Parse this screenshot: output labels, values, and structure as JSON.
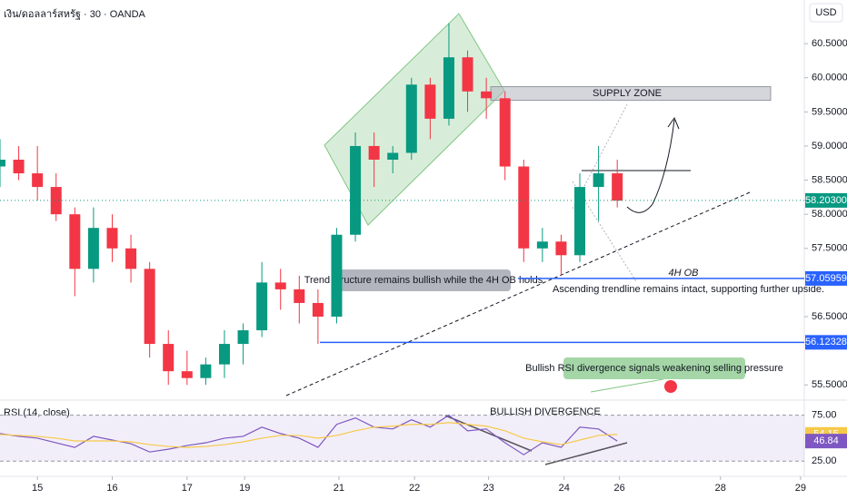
{
  "header": {
    "symbol": "เงิน/ดอลลาร์สหรัฐ · 30 · OANDA",
    "currency": "USD"
  },
  "chart_data": [
    {
      "type": "candlestick",
      "x": [
        -0.5,
        -0.25,
        0,
        0.25,
        0.5,
        0.75,
        1,
        1.25,
        1.5,
        1.75,
        2,
        2.25,
        2.5,
        2.75,
        3,
        3.25,
        3.5,
        3.75,
        4,
        4.25,
        4.5,
        4.75,
        5,
        5.25,
        5.5,
        5.75,
        6,
        6.25,
        6.5,
        6.75,
        7,
        7.25,
        7.5,
        7.75
      ],
      "open": [
        58.7,
        58.8,
        58.6,
        58.4,
        58.0,
        57.2,
        57.8,
        57.5,
        57.2,
        56.1,
        55.7,
        55.6,
        55.8,
        56.1,
        56.3,
        57.0,
        56.9,
        56.7,
        56.5,
        57.7,
        59.0,
        58.8,
        58.9,
        59.9,
        59.4,
        60.3,
        59.8,
        59.7,
        58.7,
        57.5,
        57.6,
        57.4,
        58.4,
        58.6
      ],
      "high": [
        59.1,
        59.0,
        59.0,
        58.6,
        58.1,
        58.1,
        58.0,
        57.7,
        57.3,
        56.3,
        56.0,
        55.9,
        56.3,
        56.4,
        57.3,
        57.2,
        57.1,
        56.9,
        57.8,
        59.2,
        59.2,
        59.0,
        60.0,
        60.0,
        60.8,
        60.4,
        60.0,
        59.8,
        58.8,
        57.8,
        57.7,
        58.6,
        59.0,
        58.8
      ],
      "low": [
        58.4,
        58.5,
        58.2,
        57.9,
        56.8,
        57.0,
        57.3,
        57.0,
        55.9,
        55.5,
        55.5,
        55.5,
        55.6,
        55.8,
        56.2,
        56.6,
        56.4,
        56.1,
        56.4,
        57.6,
        58.4,
        58.6,
        58.8,
        59.1,
        59.3,
        59.5,
        59.4,
        58.5,
        57.3,
        57.3,
        57.1,
        57.3,
        57.9,
        58.1
      ],
      "close": [
        58.8,
        58.6,
        58.4,
        58.0,
        57.2,
        57.8,
        57.5,
        57.2,
        56.1,
        55.7,
        55.6,
        55.8,
        56.1,
        56.3,
        57.0,
        56.9,
        56.7,
        56.5,
        57.7,
        59.0,
        58.8,
        58.9,
        59.9,
        59.4,
        60.3,
        59.8,
        59.7,
        58.7,
        57.5,
        57.6,
        57.4,
        58.4,
        58.6,
        58.2
      ],
      "up_color": "#089981",
      "down_color": "#f23645",
      "xlim": [
        -0.5,
        10.25
      ],
      "xticks": [
        {
          "value": 0,
          "label": "15"
        },
        {
          "value": 1,
          "label": "16"
        },
        {
          "value": 2,
          "label": "17"
        },
        {
          "value": 2.77,
          "label": "19"
        },
        {
          "value": 4.03,
          "label": "21"
        },
        {
          "value": 5.04,
          "label": "22"
        },
        {
          "value": 6.03,
          "label": "23"
        },
        {
          "value": 7.04,
          "label": "24"
        },
        {
          "value": 7.78,
          "label": "26"
        },
        {
          "value": 9.13,
          "label": "28"
        },
        {
          "value": 10.2,
          "label": "29"
        }
      ],
      "ylim": [
        55.29,
        61.14
      ],
      "yticks": [
        {
          "value": 60.5,
          "label": "60.50000"
        },
        {
          "value": 60,
          "label": "60.00000"
        },
        {
          "value": 59.5,
          "label": "59.50000"
        },
        {
          "value": 59,
          "label": "59.00000"
        },
        {
          "value": 58.5,
          "label": "58.50000"
        },
        {
          "value": 58,
          "label": "58.00000"
        },
        {
          "value": 57.5,
          "label": "57.50000"
        },
        {
          "value": 56.5,
          "label": "56.50000"
        },
        {
          "value": 55.5,
          "label": "55.50000"
        }
      ],
      "price_badges": [
        {
          "value": 58.203,
          "label": "58.20300",
          "color": "#089981"
        },
        {
          "value": 57.05959,
          "label": "57.05959",
          "color": "#2962ff"
        },
        {
          "value": 56.12328,
          "label": "56.12328",
          "color": "#2962ff"
        }
      ],
      "supply_zone": {
        "label": "SUPPLY ZONE",
        "range": [
          59.67,
          59.87
        ]
      },
      "annotations": [
        "Trend structure remains bullish while the 4H OB holds",
        "4H OB",
        "Ascending trendline remains intact, supporting further upside.",
        "Bullish RSI divergence signals weakening selling pressure"
      ]
    },
    {
      "type": "line",
      "title": "RSI (14, close)",
      "annotation": "BULLISH DIVERGENCE",
      "x": [
        -0.5,
        -0.25,
        0,
        0.25,
        0.5,
        0.75,
        1,
        1.25,
        1.5,
        1.75,
        2,
        2.25,
        2.5,
        2.75,
        3,
        3.25,
        3.5,
        3.75,
        4,
        4.25,
        4.5,
        4.75,
        5,
        5.25,
        5.5,
        5.75,
        6,
        6.25,
        6.5,
        6.75,
        7,
        7.25,
        7.5,
        7.75
      ],
      "series": [
        {
          "color": "#7e57c2",
          "values": [
            55,
            52,
            50,
            45,
            40,
            52,
            48,
            44,
            35,
            38,
            42,
            45,
            50,
            52,
            62,
            55,
            50,
            40,
            65,
            72,
            62,
            60,
            70,
            62,
            75,
            58,
            60,
            45,
            32,
            45,
            40,
            62,
            60,
            46.84
          ]
        },
        {
          "color": "#f7c948",
          "values": [
            54,
            53,
            52,
            50,
            47,
            47,
            47,
            46,
            43,
            41,
            40,
            41,
            43,
            46,
            50,
            53,
            53,
            50,
            53,
            58,
            62,
            63,
            65,
            65,
            67,
            65,
            63,
            58,
            50,
            46,
            43,
            48,
            53,
            54.15
          ]
        }
      ],
      "ylim": [
        11.5,
        89.4
      ],
      "yticks": [
        {
          "value": 75,
          "label": "75.00"
        },
        {
          "value": 25,
          "label": "25.00"
        }
      ],
      "badges": [
        {
          "value": 54.15,
          "label": "54.15",
          "color": "#f7c948"
        },
        {
          "value": 46.84,
          "label": "46.84",
          "color": "#7e57c2"
        }
      ]
    }
  ]
}
